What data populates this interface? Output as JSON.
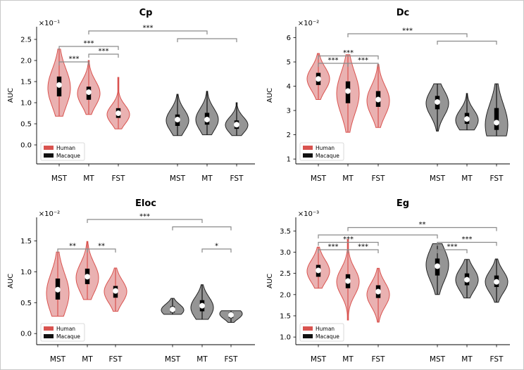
{
  "colors": {
    "human_fill": "#e6a3a3",
    "human_edge": "#d9534f",
    "macaque_fill": "#8f8f8f",
    "macaque_edge": "#222222",
    "sig": "#8a8a8a"
  },
  "chart_data": [
    {
      "type": "violin",
      "title": "Cp",
      "ylabel": "AUC",
      "exponent": "×10⁻¹",
      "ylim": [
        -0.45,
        2.8
      ],
      "yticks": [
        0.0,
        0.5,
        1.0,
        1.5,
        2.0,
        2.5
      ],
      "ytick_labels": [
        "0.0",
        "0.5",
        "1.0",
        "1.5",
        "2.0",
        "2.5"
      ],
      "categories": [
        "MST",
        "MT",
        "FST",
        "MST",
        "MT",
        "FST"
      ],
      "legend": [
        "Human",
        "Macaque"
      ],
      "violins": [
        {
          "group": "Human",
          "region": "MST",
          "min": 0.68,
          "q1": 1.15,
          "median": 1.42,
          "q3": 1.62,
          "max": 2.27,
          "mode": 1.35
        },
        {
          "group": "Human",
          "region": "MT",
          "min": 0.72,
          "q1": 1.07,
          "median": 1.25,
          "q3": 1.38,
          "max": 2.0,
          "mode": 1.22
        },
        {
          "group": "Human",
          "region": "FST",
          "min": 0.38,
          "q1": 0.64,
          "median": 0.75,
          "q3": 0.87,
          "max": 1.6,
          "mode": 0.72
        },
        {
          "group": "Macaque",
          "region": "MST",
          "min": 0.22,
          "q1": 0.45,
          "median": 0.6,
          "q3": 0.72,
          "max": 1.2,
          "mode": 0.58
        },
        {
          "group": "Macaque",
          "region": "MT",
          "min": 0.24,
          "q1": 0.48,
          "median": 0.6,
          "q3": 0.76,
          "max": 1.27,
          "mode": 0.6
        },
        {
          "group": "Macaque",
          "region": "FST",
          "min": 0.22,
          "q1": 0.38,
          "median": 0.48,
          "q3": 0.58,
          "max": 1.0,
          "mode": 0.47
        }
      ],
      "brackets": [
        {
          "from": 0,
          "to": 1,
          "level": 0,
          "label": "***"
        },
        {
          "from": 1,
          "to": 2,
          "level": 1,
          "label": "***"
        },
        {
          "from": 0,
          "to": 2,
          "level": 2,
          "label": "***"
        },
        {
          "from": 3,
          "to": 5,
          "level": 3,
          "label": ""
        },
        {
          "from": 1,
          "to": 4,
          "level": 4,
          "label": "***"
        }
      ]
    },
    {
      "type": "violin",
      "title": "Dc",
      "ylabel": "AUC",
      "exponent": "×10⁻²",
      "ylim": [
        0.8,
        6.45
      ],
      "yticks": [
        1,
        2,
        3,
        4,
        5,
        6
      ],
      "ytick_labels": [
        "1",
        "2",
        "3",
        "4",
        "5",
        "6"
      ],
      "categories": [
        "MST",
        "MT",
        "FST",
        "MST",
        "MT",
        "FST"
      ],
      "legend": [
        "Human",
        "Macaque"
      ],
      "violins": [
        {
          "group": "Human",
          "region": "MST",
          "min": 3.45,
          "q1": 4.05,
          "median": 4.3,
          "q3": 4.55,
          "max": 5.35,
          "mode": 4.3
        },
        {
          "group": "Human",
          "region": "MT",
          "min": 2.1,
          "q1": 3.3,
          "median": 3.8,
          "q3": 4.2,
          "max": 5.3,
          "mode": 3.7
        },
        {
          "group": "Human",
          "region": "FST",
          "min": 2.3,
          "q1": 3.15,
          "median": 3.45,
          "q3": 3.8,
          "max": 4.9,
          "mode": 3.4
        },
        {
          "group": "Macaque",
          "region": "MST",
          "min": 2.15,
          "q1": 3.05,
          "median": 3.35,
          "q3": 3.6,
          "max": 4.1,
          "mode": 3.3
        },
        {
          "group": "Macaque",
          "region": "MT",
          "min": 2.2,
          "q1": 2.45,
          "median": 2.65,
          "q3": 2.9,
          "max": 3.7,
          "mode": 2.6
        },
        {
          "group": "Macaque",
          "region": "FST",
          "min": 1.95,
          "q1": 2.2,
          "median": 2.5,
          "q3": 3.1,
          "max": 4.1,
          "mode": 2.4
        }
      ],
      "brackets": [
        {
          "from": 0,
          "to": 1,
          "level": 0,
          "label": "***"
        },
        {
          "from": 1,
          "to": 2,
          "level": 0,
          "label": "***"
        },
        {
          "from": 0,
          "to": 2,
          "level": 1,
          "label": "***"
        },
        {
          "from": 3,
          "to": 5,
          "level": 3,
          "label": ""
        },
        {
          "from": 1,
          "to": 4,
          "level": 4,
          "label": "***"
        }
      ]
    },
    {
      "type": "violin",
      "title": "Eloc",
      "ylabel": "AUC",
      "exponent": "×10⁻²",
      "ylim": [
        -0.18,
        1.88
      ],
      "yticks": [
        0.0,
        0.5,
        1.0,
        1.5
      ],
      "ytick_labels": [
        "0.0",
        "0.5",
        "1.0",
        "1.5"
      ],
      "categories": [
        "MST",
        "MT",
        "FST",
        "MST",
        "MT",
        "FST"
      ],
      "legend": [
        "Human",
        "Macaque"
      ],
      "violins": [
        {
          "group": "Human",
          "region": "MST",
          "min": 0.28,
          "q1": 0.55,
          "median": 0.71,
          "q3": 0.89,
          "max": 1.32,
          "mode": 0.65
        },
        {
          "group": "Human",
          "region": "MT",
          "min": 0.55,
          "q1": 0.8,
          "median": 0.92,
          "q3": 1.05,
          "max": 1.49,
          "mode": 0.9
        },
        {
          "group": "Human",
          "region": "FST",
          "min": 0.36,
          "q1": 0.58,
          "median": 0.69,
          "q3": 0.77,
          "max": 1.06,
          "mode": 0.68
        },
        {
          "group": "Macaque",
          "region": "MST",
          "min": 0.31,
          "q1": 0.34,
          "median": 0.39,
          "q3": 0.44,
          "max": 0.57,
          "mode": 0.38
        },
        {
          "group": "Macaque",
          "region": "MT",
          "min": 0.23,
          "q1": 0.36,
          "median": 0.45,
          "q3": 0.54,
          "max": 0.79,
          "mode": 0.42
        },
        {
          "group": "Macaque",
          "region": "FST",
          "min": 0.18,
          "q1": 0.25,
          "median": 0.3,
          "q3": 0.34,
          "max": 0.37,
          "mode": 0.32
        }
      ],
      "brackets": [
        {
          "from": 0,
          "to": 1,
          "level": 0,
          "label": "**"
        },
        {
          "from": 1,
          "to": 2,
          "level": 0,
          "label": "**"
        },
        {
          "from": 4,
          "to": 5,
          "level": 0,
          "label": "*"
        },
        {
          "from": 3,
          "to": 5,
          "level": 3,
          "label": ""
        },
        {
          "from": 1,
          "to": 4,
          "level": 4,
          "label": "***"
        }
      ]
    },
    {
      "type": "violin",
      "title": "Eg",
      "ylabel": "AUC",
      "exponent": "×10⁻³",
      "ylim": [
        0.82,
        3.82
      ],
      "yticks": [
        1.0,
        1.5,
        2.0,
        2.5,
        3.0,
        3.5
      ],
      "ytick_labels": [
        "1.0",
        "1.5",
        "2.0",
        "2.5",
        "3.0",
        "3.5"
      ],
      "categories": [
        "MST",
        "MT",
        "FST",
        "MST",
        "MT",
        "FST"
      ],
      "legend": [
        "Human",
        "Macaque"
      ],
      "violins": [
        {
          "group": "Human",
          "region": "MST",
          "min": 2.15,
          "q1": 2.42,
          "median": 2.57,
          "q3": 2.7,
          "max": 3.12,
          "mode": 2.55
        },
        {
          "group": "Human",
          "region": "MT",
          "min": 1.4,
          "q1": 2.15,
          "median": 2.32,
          "q3": 2.48,
          "max": 3.3,
          "mode": 2.3
        },
        {
          "group": "Human",
          "region": "FST",
          "min": 1.35,
          "q1": 1.92,
          "median": 2.07,
          "q3": 2.22,
          "max": 2.62,
          "mode": 2.0
        },
        {
          "group": "Macaque",
          "region": "MST",
          "min": 2.0,
          "q1": 2.45,
          "median": 2.67,
          "q3": 2.85,
          "max": 3.2,
          "mode": 2.7
        },
        {
          "group": "Macaque",
          "region": "MT",
          "min": 1.92,
          "q1": 2.22,
          "median": 2.35,
          "q3": 2.5,
          "max": 2.83,
          "mode": 2.35
        },
        {
          "group": "Macaque",
          "region": "FST",
          "min": 1.82,
          "q1": 2.18,
          "median": 2.3,
          "q3": 2.45,
          "max": 2.84,
          "mode": 2.3
        }
      ],
      "brackets": [
        {
          "from": 0,
          "to": 1,
          "level": 0,
          "label": "***"
        },
        {
          "from": 1,
          "to": 2,
          "level": 0,
          "label": "***"
        },
        {
          "from": 0,
          "to": 2,
          "level": 1,
          "label": "***"
        },
        {
          "from": 3,
          "to": 4,
          "level": 0,
          "label": "***"
        },
        {
          "from": 3,
          "to": 5,
          "level": 1,
          "label": "***"
        },
        {
          "from": 0,
          "to": 3,
          "level": 2,
          "label": ""
        },
        {
          "from": 1,
          "to": 5,
          "level": 3,
          "label": "**"
        }
      ]
    }
  ]
}
